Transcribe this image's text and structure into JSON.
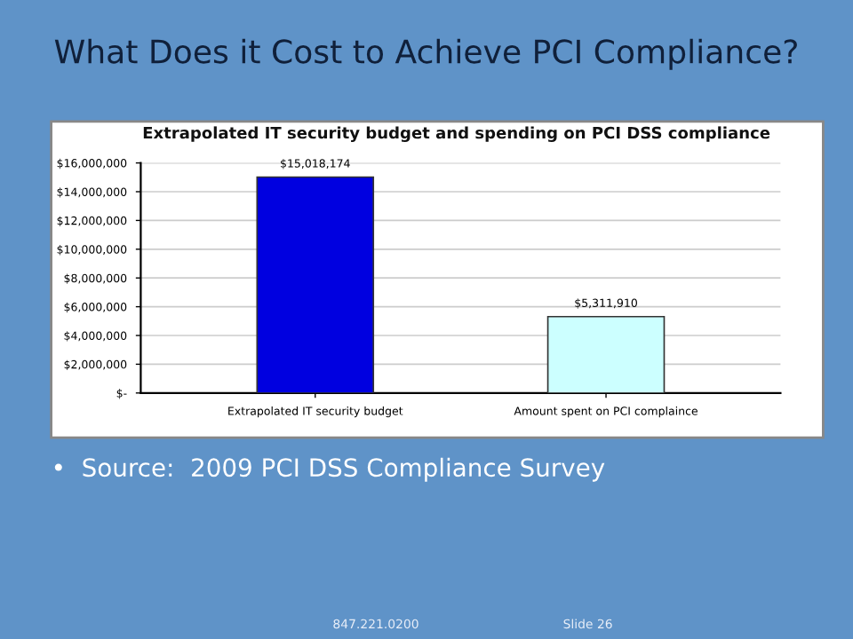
{
  "chart_data": {
    "type": "bar",
    "title": "What Does it Cost to Achieve PCI Compliance?",
    "subtitle": "Extrapolated IT security budget and spending on PCI DSS compliance",
    "categories": [
      "Extrapolated IT security budget",
      "Amount spent on PCI complaince"
    ],
    "values": [
      15018174,
      5311910
    ],
    "colors": [
      "#0000e0",
      "#ccffff"
    ],
    "value_labels": [
      "$15,018,174",
      "$5,311,910"
    ],
    "ylim": [
      0,
      16000000
    ],
    "yticks": [
      {
        "value": 0,
        "label": "$-"
      },
      {
        "value": 2000000,
        "label": "$2,000,000"
      },
      {
        "value": 4000000,
        "label": "$4,000,000"
      },
      {
        "value": 6000000,
        "label": "$6,000,000"
      },
      {
        "value": 8000000,
        "label": "$8,000,000"
      },
      {
        "value": 10000000,
        "label": "$10,000,000"
      },
      {
        "value": 12000000,
        "label": "$12,000,000"
      },
      {
        "value": 14000000,
        "label": "$14,000,000"
      },
      {
        "value": 16000000,
        "label": "$16,000,000"
      }
    ],
    "grid": "y",
    "annotations": [
      "•  Source:  2009 PCI DSS Compliance Survey",
      "847.221.0200",
      "Slide 26"
    ]
  }
}
